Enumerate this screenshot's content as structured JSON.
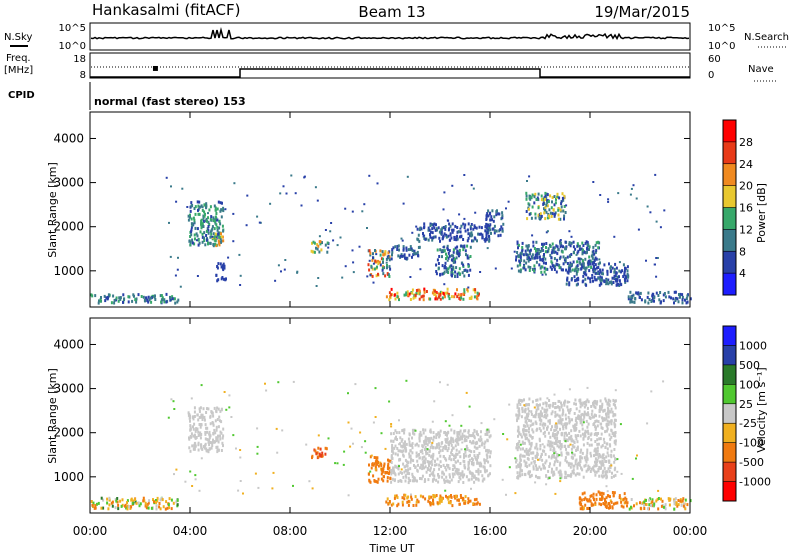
{
  "header": {
    "station": "Hankasalmi (fitACF)",
    "beam": "Beam 13",
    "date": "19/Mar/2015"
  },
  "top_panels": {
    "nsky_label": "N.Sky",
    "nsky_tick_top": "10^5",
    "nsky_tick_bottom": "10^0",
    "nsearch_label": "N.Search",
    "nsearch_tick_top": "10^5",
    "nsearch_tick_bottom": "10^0",
    "freq_label": "Freq.",
    "freq_unit": "[MHz]",
    "freq_tick_top": "18",
    "freq_tick_bottom": "8",
    "nave_label": "Nave",
    "nave_tick_top": "60",
    "nave_tick_bottom": "0",
    "cpid_label": "CPID",
    "cpid_value": "normal (fast stereo) 153"
  },
  "chart_data": [
    {
      "type": "heatmap",
      "name": "power",
      "ylabel": "Slant Range [km]",
      "xlabel": "Time UT",
      "x_ticks": [
        "00:00",
        "04:00",
        "08:00",
        "12:00",
        "16:00",
        "20:00",
        "00:00"
      ],
      "y_ticks": [
        "1000",
        "2000",
        "3000",
        "4000"
      ],
      "ylim": [
        180,
        4600
      ],
      "xlim_hours": [
        0,
        24
      ],
      "colorbar_label": "Power [dB]",
      "colorbar_ticks": [
        "4",
        "8",
        "12",
        "16",
        "20",
        "24",
        "28"
      ],
      "colors": [
        "#1e1eff",
        "#2840a8",
        "#3a7a8a",
        "#37a86a",
        "#e8c830",
        "#f08a20",
        "#e83a18",
        "#ff0000"
      ],
      "blobs": [
        {
          "t": [
            0.0,
            3.5
          ],
          "r": [
            300,
            500
          ],
          "v": [
            6,
            14
          ]
        },
        {
          "t": [
            3.9,
            5.3
          ],
          "r": [
            1600,
            2600
          ],
          "v": [
            6,
            16
          ]
        },
        {
          "t": [
            4.8,
            5.3
          ],
          "r": [
            1600,
            1900
          ],
          "v": [
            14,
            22
          ]
        },
        {
          "t": [
            5.0,
            5.4
          ],
          "r": [
            800,
            1200
          ],
          "v": [
            4,
            8
          ]
        },
        {
          "t": [
            8.8,
            9.5
          ],
          "r": [
            1450,
            1700
          ],
          "v": [
            6,
            22
          ]
        },
        {
          "t": [
            11.1,
            12.0
          ],
          "r": [
            900,
            1500
          ],
          "v": [
            6,
            26
          ]
        },
        {
          "t": [
            11.8,
            15.6
          ],
          "r": [
            380,
            620
          ],
          "v": [
            14,
            30
          ]
        },
        {
          "t": [
            12.0,
            13.2
          ],
          "r": [
            1300,
            1600
          ],
          "v": [
            4,
            12
          ]
        },
        {
          "t": [
            13.8,
            15.2
          ],
          "r": [
            900,
            1600
          ],
          "v": [
            4,
            14
          ]
        },
        {
          "t": [
            13.0,
            16.0
          ],
          "r": [
            1700,
            2100
          ],
          "v": [
            4,
            10
          ]
        },
        {
          "t": [
            15.8,
            16.5
          ],
          "r": [
            1800,
            2400
          ],
          "v": [
            4,
            10
          ]
        },
        {
          "t": [
            17.4,
            19.0
          ],
          "r": [
            2200,
            2800
          ],
          "v": [
            4,
            20
          ]
        },
        {
          "t": [
            17.0,
            20.4
          ],
          "r": [
            1000,
            1700
          ],
          "v": [
            4,
            14
          ]
        },
        {
          "t": [
            19.0,
            21.5
          ],
          "r": [
            700,
            1200
          ],
          "v": [
            4,
            10
          ]
        },
        {
          "t": [
            21.5,
            24.0
          ],
          "r": [
            300,
            550
          ],
          "v": [
            4,
            12
          ]
        }
      ]
    },
    {
      "type": "heatmap",
      "name": "velocity",
      "ylabel": "Slant Range [km]",
      "xlabel": "Time UT",
      "x_ticks": [
        "00:00",
        "04:00",
        "08:00",
        "12:00",
        "16:00",
        "20:00",
        "00:00"
      ],
      "y_ticks": [
        "1000",
        "2000",
        "3000",
        "4000"
      ],
      "ylim": [
        180,
        4600
      ],
      "xlim_hours": [
        0,
        24
      ],
      "colorbar_label": "Velocity [m s⁻¹]",
      "colorbar_ticks": [
        "1000",
        "500",
        "100",
        "25",
        "-25",
        "-100",
        "-500",
        "-1000"
      ],
      "colors": [
        "#1e1eff",
        "#2840a8",
        "#2a7a2a",
        "#50c830",
        "#c8c8c8",
        "#f0b020",
        "#f07a10",
        "#e8401a",
        "#ff0000"
      ],
      "blobs": [
        {
          "t": [
            0.0,
            3.5
          ],
          "r": [
            300,
            550
          ],
          "v": [
            -150,
            120
          ]
        },
        {
          "t": [
            3.9,
            5.3
          ],
          "r": [
            1600,
            2600
          ],
          "v": [
            -25,
            25
          ]
        },
        {
          "t": [
            8.8,
            9.5
          ],
          "r": [
            1450,
            1700
          ],
          "v": [
            -700,
            -300
          ]
        },
        {
          "t": [
            11.1,
            12.0
          ],
          "r": [
            900,
            1500
          ],
          "v": [
            -400,
            -80
          ]
        },
        {
          "t": [
            11.8,
            15.6
          ],
          "r": [
            380,
            620
          ],
          "v": [
            -150,
            -60
          ]
        },
        {
          "t": [
            12.0,
            16.0
          ],
          "r": [
            900,
            2100
          ],
          "v": [
            -25,
            25
          ]
        },
        {
          "t": [
            17.0,
            21.0
          ],
          "r": [
            1000,
            2800
          ],
          "v": [
            -25,
            25
          ]
        },
        {
          "t": [
            19.5,
            21.5
          ],
          "r": [
            300,
            700
          ],
          "v": [
            -250,
            -80
          ]
        },
        {
          "t": [
            21.5,
            24.0
          ],
          "r": [
            300,
            550
          ],
          "v": [
            -150,
            80
          ]
        }
      ]
    }
  ]
}
